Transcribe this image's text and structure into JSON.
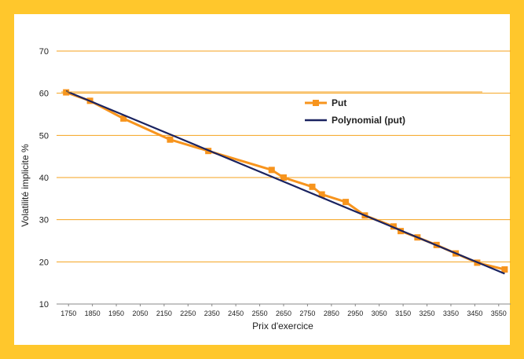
{
  "chart_data": {
    "type": "line",
    "title": "",
    "xlabel": "Prix d'exercice",
    "ylabel": "Volatilité implicite %",
    "xlim": [
      1700,
      3600
    ],
    "ylim": [
      10,
      70
    ],
    "xticks": [
      1750,
      1850,
      1950,
      2050,
      2150,
      2250,
      2350,
      2450,
      2550,
      2650,
      2750,
      2850,
      2950,
      3050,
      3150,
      3250,
      3350,
      3450,
      3550
    ],
    "yticks": [
      10,
      20,
      30,
      40,
      50,
      60,
      70
    ],
    "grid": "horizontal",
    "legend_position": "right",
    "series": [
      {
        "name": "Put",
        "color": "#F7941D",
        "marker": "square",
        "points": [
          [
            1740,
            60.2
          ],
          [
            1840,
            58.2
          ],
          [
            1980,
            54.0
          ],
          [
            2175,
            49.0
          ],
          [
            2335,
            46.3
          ],
          [
            2600,
            41.8
          ],
          [
            2650,
            40.0
          ],
          [
            2770,
            37.8
          ],
          [
            2810,
            36.0
          ],
          [
            2910,
            34.2
          ],
          [
            2990,
            31.0
          ],
          [
            3110,
            28.4
          ],
          [
            3140,
            27.3
          ],
          [
            3210,
            25.8
          ],
          [
            3290,
            24.0
          ],
          [
            3370,
            22.0
          ],
          [
            3460,
            19.8
          ],
          [
            3575,
            18.2
          ]
        ]
      },
      {
        "name": "Polynomial (put)",
        "color": "#1A2360",
        "marker": "none",
        "points": [
          [
            1740,
            60.5
          ],
          [
            3575,
            17.2
          ]
        ]
      }
    ]
  }
}
